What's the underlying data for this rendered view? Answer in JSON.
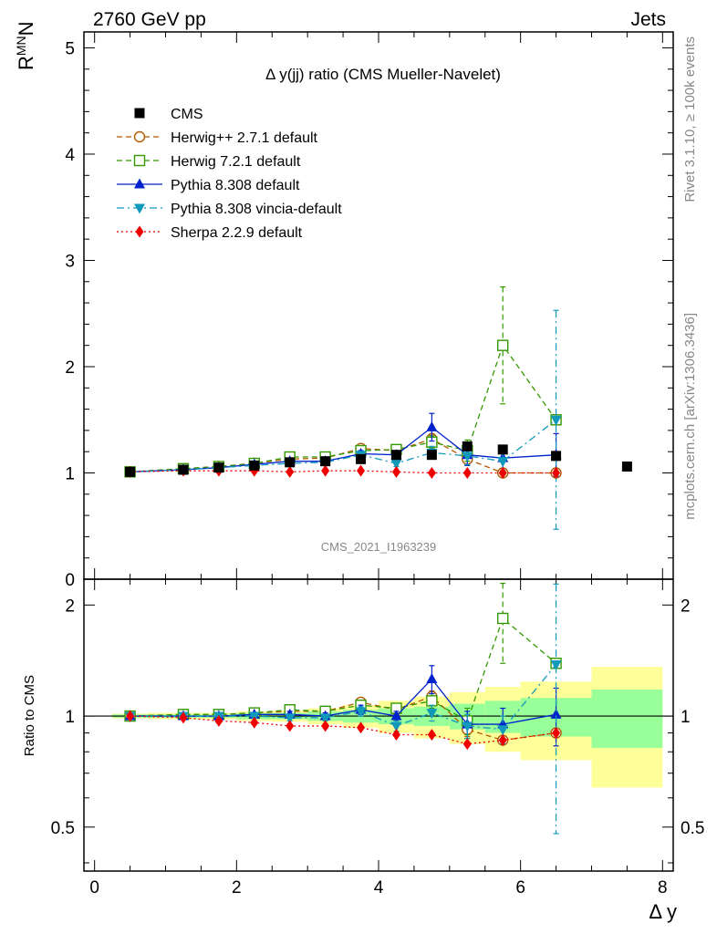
{
  "header": {
    "left": "2760 GeV pp",
    "right": "Jets"
  },
  "side_text": {
    "rivet": "Rivet 3.1.10, ≥ 100k events",
    "mcplots": "mcplots.cern.ch [arXiv:1306.3436]"
  },
  "watermark": "CMS_2021_I1963239",
  "colors": {
    "cms": "#000000",
    "herwigpp": "#b35900",
    "herwig7": "#339900",
    "pythia": "#0022cc",
    "vincia": "#1199bb",
    "sherpa": "#ee0000",
    "band_inner": "#99ff99",
    "band_outer": "#ffff99"
  },
  "chart_data": [
    {
      "type": "scatter",
      "panel": "main",
      "title": "Δ y(jj) ratio (CMS Mueller-Navelet)",
      "ylabel_main": "R",
      "ylabel_sup": "MN",
      "ylabel_sub": "N",
      "xlim": [
        -0.15,
        8.15
      ],
      "ylim": [
        0,
        5.15
      ],
      "yticks": [
        "0",
        "1",
        "2",
        "3",
        "4",
        "5"
      ],
      "legend_position": "top-left",
      "series": [
        {
          "key": "cms",
          "name": "CMS",
          "marker": "square",
          "x": [
            0.5,
            1.25,
            1.75,
            2.25,
            2.75,
            3.25,
            3.75,
            4.25,
            4.75,
            5.25,
            5.75,
            6.5,
            7.5
          ],
          "y": [
            1.01,
            1.03,
            1.05,
            1.07,
            1.1,
            1.11,
            1.13,
            1.17,
            1.17,
            1.25,
            1.22,
            1.16,
            1.06
          ]
        },
        {
          "key": "herwigpp",
          "name": "Herwig++ 2.7.1 default",
          "marker": "circle-open",
          "line": "dashed",
          "x": [
            0.5,
            1.25,
            1.75,
            2.25,
            2.75,
            3.25,
            3.75,
            4.25,
            4.75,
            5.25,
            5.75,
            6.5
          ],
          "y": [
            1.01,
            1.04,
            1.06,
            1.09,
            1.13,
            1.14,
            1.23,
            1.21,
            1.32,
            1.13,
            1.0,
            1.0
          ],
          "err": [
            0.01,
            0.01,
            0.01,
            0.01,
            0.02,
            0.02,
            0.03,
            0.03,
            0.05,
            0.05,
            0.0,
            0.0
          ]
        },
        {
          "key": "herwig7",
          "name": "Herwig 7.2.1 default",
          "marker": "square-open",
          "line": "dashed",
          "x": [
            0.5,
            1.25,
            1.75,
            2.25,
            2.75,
            3.25,
            3.75,
            4.25,
            4.75,
            5.25,
            5.75,
            6.5
          ],
          "y": [
            1.01,
            1.04,
            1.06,
            1.09,
            1.15,
            1.15,
            1.21,
            1.22,
            1.29,
            1.21,
            2.2,
            1.5
          ],
          "err": [
            0.01,
            0.01,
            0.01,
            0.01,
            0.02,
            0.02,
            0.03,
            0.03,
            0.06,
            0.1,
            0.55,
            0.0
          ]
        },
        {
          "key": "pythia",
          "name": "Pythia 8.308 default",
          "marker": "triangle-up",
          "line": "solid",
          "x": [
            0.5,
            1.25,
            1.75,
            2.25,
            2.75,
            3.25,
            3.75,
            4.25,
            4.75,
            5.25,
            5.75,
            6.5
          ],
          "y": [
            1.01,
            1.03,
            1.05,
            1.08,
            1.11,
            1.11,
            1.18,
            1.17,
            1.43,
            1.17,
            1.14,
            1.17
          ],
          "err": [
            0.01,
            0.01,
            0.01,
            0.01,
            0.02,
            0.02,
            0.03,
            0.03,
            0.13,
            0.1,
            0.12,
            0.2
          ]
        },
        {
          "key": "vincia",
          "name": "Pythia 8.308 vincia-default",
          "marker": "triangle-down",
          "line": "dashdot",
          "x": [
            0.5,
            1.25,
            1.75,
            2.25,
            2.75,
            3.25,
            3.75,
            4.25,
            4.75,
            5.25,
            5.75,
            6.5
          ],
          "y": [
            1.01,
            1.03,
            1.05,
            1.07,
            1.09,
            1.1,
            1.17,
            1.09,
            1.19,
            1.16,
            1.11,
            1.5
          ],
          "err": [
            0.01,
            0.01,
            0.01,
            0.01,
            0.02,
            0.02,
            0.03,
            0.03,
            0.06,
            0.08,
            0.1,
            1.03
          ]
        },
        {
          "key": "sherpa",
          "name": "Sherpa 2.2.9 default",
          "marker": "diamond",
          "line": "dotted",
          "x": [
            0.5,
            1.25,
            1.75,
            2.25,
            2.75,
            3.25,
            3.75,
            4.25,
            4.75,
            5.25,
            5.75,
            6.5
          ],
          "y": [
            1.01,
            1.02,
            1.02,
            1.02,
            1.01,
            1.02,
            1.02,
            1.01,
            1.0,
            1.0,
            1.0,
            1.0
          ],
          "err": [
            0.01,
            0.01,
            0.01,
            0.01,
            0.01,
            0.01,
            0.01,
            0.01,
            0.01,
            0.01,
            0.01,
            0.01
          ]
        }
      ]
    },
    {
      "type": "scatter",
      "panel": "ratio",
      "ylabel": "Ratio to CMS",
      "xlabel": "Δ y",
      "xlim": [
        -0.15,
        8.15
      ],
      "ylim": [
        0.38,
        2.35
      ],
      "yticks": [
        "0.5",
        "1",
        "2"
      ],
      "xticks": [
        "0",
        "2",
        "4",
        "6",
        "8"
      ],
      "reference": 1,
      "band_bins": {
        "edges": [
          0.25,
          0.75,
          1.5,
          2.0,
          2.5,
          3.0,
          3.5,
          4.0,
          4.5,
          5.0,
          5.5,
          6.0,
          7.0,
          8.0
        ],
        "inner": [
          0.01,
          0.01,
          0.01,
          0.02,
          0.02,
          0.03,
          0.04,
          0.05,
          0.06,
          0.08,
          0.1,
          0.12,
          0.18
        ],
        "outer": [
          0.015,
          0.02,
          0.02,
          0.03,
          0.035,
          0.05,
          0.07,
          0.1,
          0.13,
          0.16,
          0.2,
          0.24,
          0.36
        ]
      },
      "series": [
        {
          "key": "herwigpp",
          "x": [
            0.5,
            1.25,
            1.75,
            2.25,
            2.75,
            3.25,
            3.75,
            4.25,
            4.75,
            5.25,
            5.75,
            6.5
          ],
          "y": [
            1.0,
            1.01,
            1.01,
            1.02,
            1.03,
            1.03,
            1.09,
            1.04,
            1.13,
            0.92,
            0.86,
            0.9
          ],
          "err": [
            0.01,
            0.01,
            0.01,
            0.01,
            0.02,
            0.02,
            0.03,
            0.03,
            0.04,
            0.04,
            0.0,
            0.0
          ]
        },
        {
          "key": "herwig7",
          "x": [
            0.5,
            1.25,
            1.75,
            2.25,
            2.75,
            3.25,
            3.75,
            4.25,
            4.75,
            5.25,
            5.75,
            6.5
          ],
          "y": [
            1.0,
            1.01,
            1.01,
            1.02,
            1.04,
            1.03,
            1.07,
            1.05,
            1.1,
            0.97,
            1.84,
            1.39
          ],
          "err": [
            0.01,
            0.01,
            0.01,
            0.01,
            0.02,
            0.02,
            0.03,
            0.03,
            0.05,
            0.08,
            0.45,
            0.0
          ]
        },
        {
          "key": "pythia",
          "x": [
            0.5,
            1.25,
            1.75,
            2.25,
            2.75,
            3.25,
            3.75,
            4.25,
            4.75,
            5.25,
            5.75,
            6.5
          ],
          "y": [
            1.0,
            1.0,
            1.0,
            1.01,
            1.01,
            1.0,
            1.04,
            1.0,
            1.26,
            0.95,
            0.95,
            1.01
          ],
          "err": [
            0.01,
            0.01,
            0.01,
            0.01,
            0.02,
            0.02,
            0.03,
            0.03,
            0.11,
            0.08,
            0.1,
            0.18
          ]
        },
        {
          "key": "vincia",
          "x": [
            0.5,
            1.25,
            1.75,
            2.25,
            2.75,
            3.25,
            3.75,
            4.25,
            4.75,
            5.25,
            5.75,
            6.5
          ],
          "y": [
            1.0,
            1.0,
            1.0,
            1.0,
            0.99,
            0.99,
            1.03,
            0.94,
            1.02,
            0.94,
            0.92,
            1.38
          ],
          "err": [
            0.01,
            0.01,
            0.01,
            0.01,
            0.02,
            0.02,
            0.03,
            0.03,
            0.05,
            0.07,
            0.08,
            0.9
          ]
        },
        {
          "key": "sherpa",
          "x": [
            0.5,
            1.25,
            1.75,
            2.25,
            2.75,
            3.25,
            3.75,
            4.25,
            4.75,
            5.25,
            5.75,
            6.5
          ],
          "y": [
            1.0,
            0.99,
            0.97,
            0.96,
            0.94,
            0.94,
            0.93,
            0.89,
            0.89,
            0.84,
            0.86,
            0.9
          ],
          "err": [
            0.01,
            0.01,
            0.01,
            0.01,
            0.01,
            0.01,
            0.01,
            0.01,
            0.01,
            0.01,
            0.01,
            0.01
          ]
        }
      ]
    }
  ]
}
